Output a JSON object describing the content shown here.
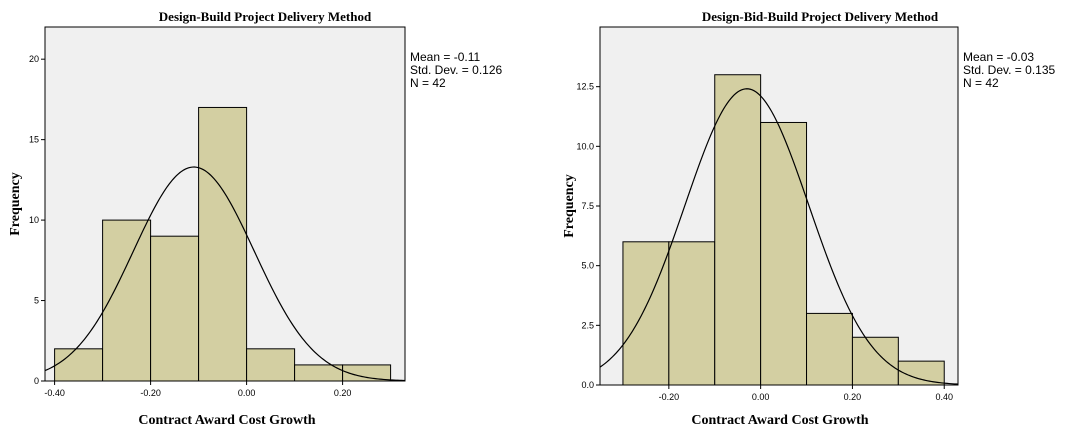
{
  "chart_data": [
    {
      "type": "bar",
      "title": "Design-Build Project Delivery Method",
      "xlabel": "Contract Award Cost Growth",
      "ylabel": "Frequency",
      "bins": [
        {
          "x0": -0.4,
          "x1": -0.3,
          "count": 2
        },
        {
          "x0": -0.3,
          "x1": -0.2,
          "count": 10
        },
        {
          "x0": -0.2,
          "x1": -0.1,
          "count": 9
        },
        {
          "x0": -0.1,
          "x1": 0.0,
          "count": 17
        },
        {
          "x0": 0.0,
          "x1": 0.1,
          "count": 2
        },
        {
          "x0": 0.1,
          "x1": 0.2,
          "count": 1
        },
        {
          "x0": 0.2,
          "x1": 0.3,
          "count": 1
        }
      ],
      "normal_curve": {
        "mean": -0.11,
        "sd": 0.126,
        "n": 42,
        "bin_width": 0.1
      },
      "xlim": [
        -0.42,
        0.33
      ],
      "ylim": [
        0,
        22
      ],
      "xticks": [
        -0.4,
        -0.2,
        0.0,
        0.2
      ],
      "xtick_labels": [
        "-0.40",
        "-0.20",
        "0.00",
        "0.20"
      ],
      "yticks": [
        0,
        5,
        10,
        15,
        20
      ],
      "ytick_labels": [
        "0",
        "5",
        "10",
        "15",
        "20"
      ],
      "stats": [
        "Mean = -0.11",
        "Std. Dev. = 0.126",
        "N = 42"
      ]
    },
    {
      "type": "bar",
      "title": "Design-Bid-Build Project Delivery Method",
      "xlabel": "Contract Award Cost Growth",
      "ylabel": "Frequency",
      "bins": [
        {
          "x0": -0.3,
          "x1": -0.2,
          "count": 6
        },
        {
          "x0": -0.2,
          "x1": -0.1,
          "count": 6
        },
        {
          "x0": -0.1,
          "x1": 0.0,
          "count": 13
        },
        {
          "x0": 0.0,
          "x1": 0.1,
          "count": 11
        },
        {
          "x0": 0.1,
          "x1": 0.2,
          "count": 3
        },
        {
          "x0": 0.2,
          "x1": 0.3,
          "count": 2
        },
        {
          "x0": 0.3,
          "x1": 0.4,
          "count": 1
        }
      ],
      "normal_curve": {
        "mean": -0.03,
        "sd": 0.135,
        "n": 42,
        "bin_width": 0.1
      },
      "xlim": [
        -0.35,
        0.43
      ],
      "ylim": [
        0,
        15
      ],
      "xticks": [
        -0.2,
        0.0,
        0.2,
        0.4
      ],
      "xtick_labels": [
        "-0.20",
        "0.00",
        "0.20",
        "0.40"
      ],
      "yticks": [
        0,
        2.5,
        5,
        7.5,
        10,
        12.5
      ],
      "ytick_labels": [
        "0.0",
        "2.5",
        "5.0",
        "7.5",
        "10.0",
        "12.5"
      ],
      "stats": [
        "Mean = -0.03",
        "Std. Dev. = 0.135",
        "N = 42"
      ]
    }
  ]
}
